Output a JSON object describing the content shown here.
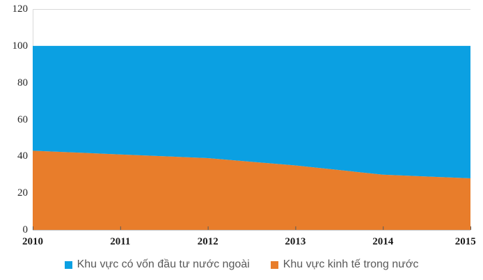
{
  "chart_data": {
    "type": "area",
    "stacked": true,
    "title": "",
    "xlabel": "",
    "ylabel": "",
    "x": [
      2010,
      2011,
      2012,
      2013,
      2014,
      2015
    ],
    "categories": [
      "2010",
      "2011",
      "2012",
      "2013",
      "2014",
      "2015"
    ],
    "series": [
      {
        "name": "Khu vực kinh tế trong nước",
        "color": "#E87D2B",
        "values": [
          43,
          41,
          39,
          35,
          30,
          28
        ]
      },
      {
        "name": "Khu vực có vốn đầu tư nước ngoài",
        "color": "#0BA0E2",
        "values": [
          57,
          59,
          61,
          65,
          70,
          72
        ]
      }
    ],
    "ylim": [
      0,
      120
    ],
    "y_ticks": [
      0,
      20,
      40,
      60,
      80,
      100,
      120
    ],
    "gridlines_at": [
      120
    ],
    "grid": "top-line-only",
    "legend_position": "bottom",
    "legend": {
      "items": [
        {
          "label": "Khu vực có vốn đầu tư nước ngoài",
          "color": "#0BA0E2"
        },
        {
          "label": "Khu vực kinh tế trong nước",
          "color": "#E87D2B"
        }
      ]
    },
    "colors": {
      "gridline": "#D9D9D9",
      "x_axis_line": "#BFBFBF",
      "tick_mark": "#595959",
      "axis_label_text": "#262626",
      "legend_text": "#595959",
      "background": "#FFFFFF"
    }
  }
}
